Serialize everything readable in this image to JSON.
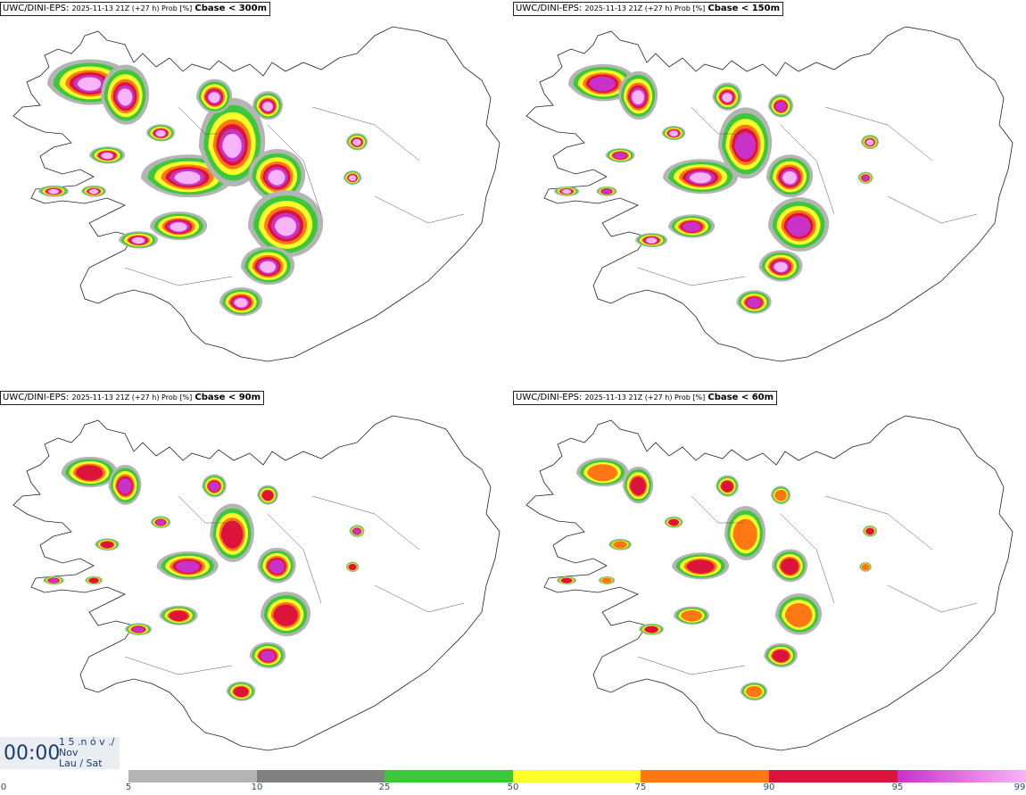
{
  "panels": [
    {
      "model": "UWC/DINI-EPS",
      "meta": "2025-11-13 21Z (+27 h) Prob [%]",
      "param": "Cbase < 300m",
      "coverage": 1.0
    },
    {
      "model": "UWC/DINI-EPS",
      "meta": "2025-11-13 21Z (+27 h) Prob [%]",
      "param": "Cbase < 150m",
      "coverage": 0.8
    },
    {
      "model": "UWC/DINI-EPS",
      "meta": "2025-11-13 21Z (+27 h) Prob [%]",
      "param": "Cbase < 90m",
      "coverage": 0.65
    },
    {
      "model": "UWC/DINI-EPS",
      "meta": "2025-11-13 21Z (+27 h) Prob [%]",
      "param": "Cbase < 60m",
      "coverage": 0.6
    }
  ],
  "clock": {
    "time": "00:00",
    "line1": "1 5 .n ó v ./",
    "line2": "Nov",
    "line3": "Lau / Sat"
  },
  "legend": {
    "ticks": [
      "0",
      "5",
      "10",
      "25",
      "50",
      "75",
      "90",
      "95",
      "99"
    ],
    "colors": {
      "c5": "#b4b4b4",
      "c10": "#808080",
      "c25": "#3cc83c",
      "c50": "#ffff28",
      "c75": "#ff7814",
      "c90": "#dc143c",
      "c95": "#c832c8",
      "c99": "#f8b4f8"
    }
  }
}
